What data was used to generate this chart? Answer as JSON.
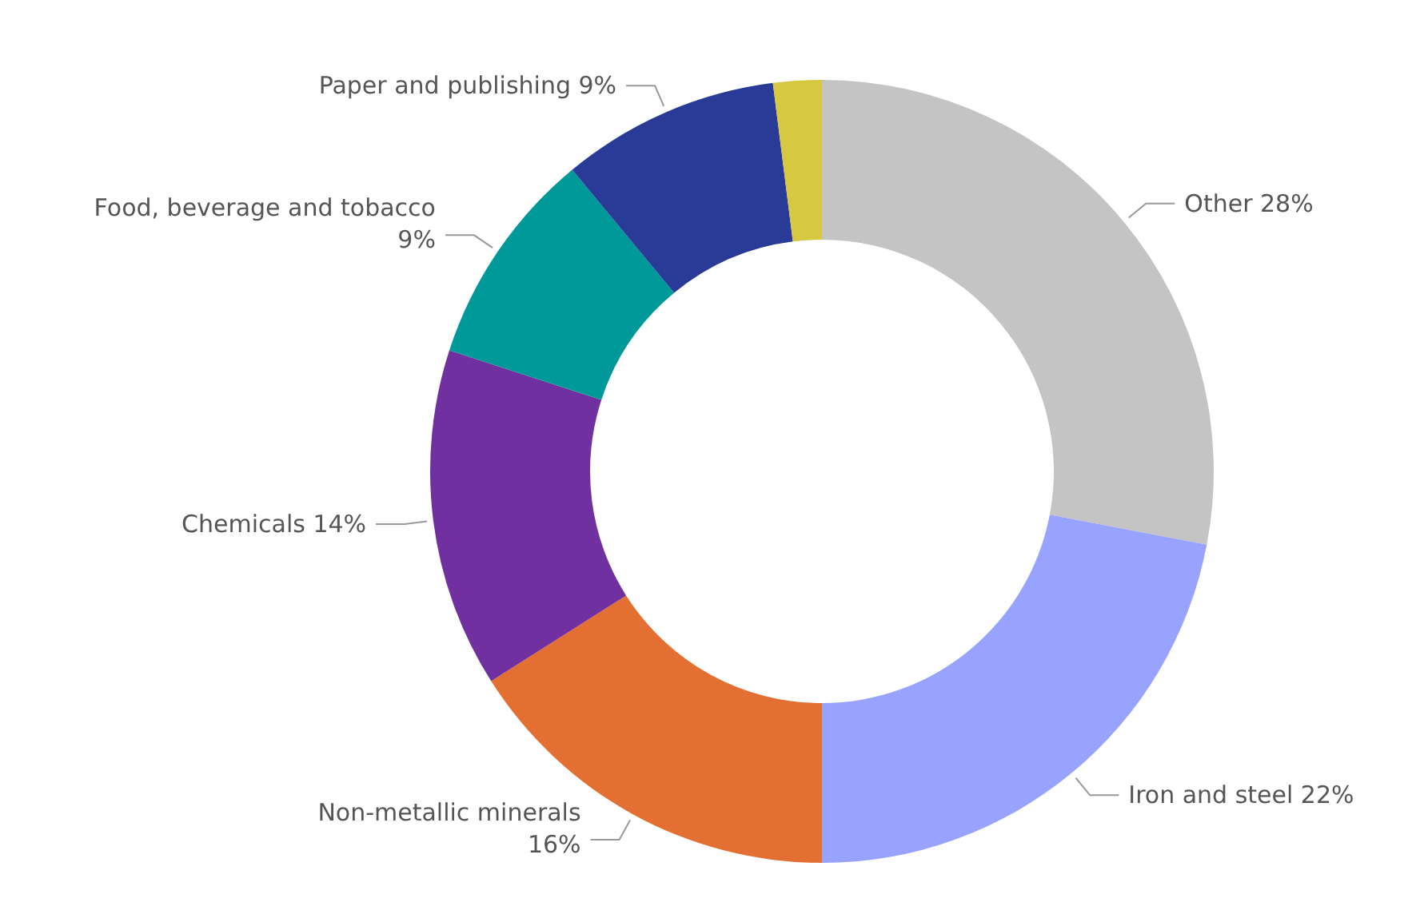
{
  "chart_data": {
    "type": "donut",
    "categories": [
      "Other",
      "Iron and steel",
      "Non-metallic minerals",
      "Chemicals",
      "Food, beverage and tobacco",
      "Paper and publishing",
      null
    ],
    "values": [
      28,
      22,
      16,
      14,
      9,
      9,
      2
    ],
    "value_labels": [
      "28%",
      "22%",
      "16%",
      "14%",
      "9%",
      "9%",
      null
    ],
    "colors": [
      "#c4c4c4",
      "#97a3fe",
      "#e37032",
      "#7030a0",
      "#009999",
      "#2a3a97",
      "#d6c840"
    ]
  }
}
